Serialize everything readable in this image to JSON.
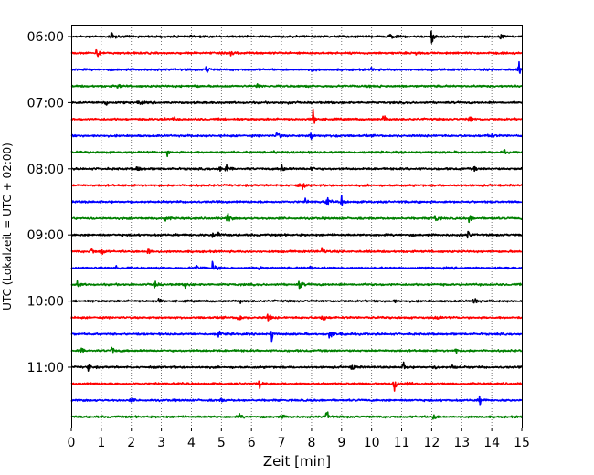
{
  "chart_data": {
    "type": "line",
    "title": "",
    "xlabel": "Zeit  [min]",
    "ylabel": "UTC (Lokalzeit = UTC + 02:00)",
    "xlim": [
      0,
      15
    ],
    "x_ticks": [
      "0",
      "1",
      "2",
      "3",
      "4",
      "5",
      "6",
      "7",
      "8",
      "9",
      "10",
      "11",
      "12",
      "13",
      "14",
      "15"
    ],
    "y_tick_labels": [
      "06:00",
      "07:00",
      "08:00",
      "09:00",
      "10:00",
      "11:00"
    ],
    "grid": "vertical-dotted",
    "trace_start": "06:00",
    "trace_interval_minutes": 15,
    "trace_count": 24,
    "trace_colors": [
      "#000000",
      "#ff0000",
      "#0000ff",
      "#008000"
    ],
    "traces": [
      {
        "start": "06:00",
        "events": [
          [
            1.35,
            1.0
          ],
          [
            10.6,
            0.9
          ],
          [
            12.0,
            1.4
          ],
          [
            14.3,
            1.0
          ]
        ]
      },
      {
        "start": "06:15",
        "events": [
          [
            0.85,
            1.1
          ],
          [
            5.3,
            0.5
          ],
          [
            11.5,
            0.5
          ]
        ]
      },
      {
        "start": "06:30",
        "events": [
          [
            4.5,
            1.0
          ],
          [
            8.0,
            0.5
          ],
          [
            10.0,
            0.5
          ],
          [
            14.9,
            1.3
          ]
        ]
      },
      {
        "start": "06:45",
        "events": [
          [
            1.55,
            0.5
          ],
          [
            4.1,
            0.3
          ],
          [
            6.2,
            0.4
          ],
          [
            10.2,
            0.3
          ]
        ]
      },
      {
        "start": "07:00",
        "events": [
          [
            1.1,
            1.1
          ],
          [
            2.2,
            0.6
          ],
          [
            7.2,
            0.5
          ]
        ]
      },
      {
        "start": "07:15",
        "events": [
          [
            3.0,
            0.6
          ],
          [
            3.4,
            0.4
          ],
          [
            8.05,
            1.5
          ],
          [
            10.4,
            0.9
          ],
          [
            13.25,
            1.0
          ]
        ]
      },
      {
        "start": "07:30",
        "events": [
          [
            6.85,
            1.0
          ],
          [
            7.95,
            1.1
          ],
          [
            8.8,
            0.5
          ],
          [
            13.9,
            1.0
          ]
        ]
      },
      {
        "start": "07:45",
        "events": [
          [
            3.2,
            0.5
          ],
          [
            6.7,
            0.3
          ],
          [
            14.4,
            0.3
          ]
        ]
      },
      {
        "start": "08:00",
        "events": [
          [
            2.2,
            0.9
          ],
          [
            4.95,
            1.0
          ],
          [
            5.15,
            0.8
          ],
          [
            7.0,
            1.1
          ],
          [
            8.0,
            0.6
          ],
          [
            13.4,
            0.5
          ]
        ]
      },
      {
        "start": "08:15",
        "events": [
          [
            7.5,
            0.6
          ],
          [
            7.7,
            0.5
          ]
        ]
      },
      {
        "start": "08:30",
        "events": [
          [
            7.8,
            0.5
          ],
          [
            8.5,
            1.1
          ],
          [
            9.0,
            0.9
          ]
        ]
      },
      {
        "start": "08:45",
        "events": [
          [
            3.1,
            0.8
          ],
          [
            5.2,
            1.2
          ],
          [
            12.1,
            1.1
          ],
          [
            13.25,
            0.9
          ]
        ]
      },
      {
        "start": "09:00",
        "events": [
          [
            4.7,
            0.7
          ],
          [
            4.9,
            0.5
          ],
          [
            13.2,
            0.7
          ]
        ]
      },
      {
        "start": "09:15",
        "events": [
          [
            0.65,
            0.9
          ],
          [
            1.0,
            1.1
          ],
          [
            2.55,
            0.9
          ],
          [
            8.35,
            1.1
          ]
        ]
      },
      {
        "start": "09:30",
        "events": [
          [
            1.5,
            0.5
          ],
          [
            4.15,
            0.7
          ],
          [
            4.7,
            1.3
          ],
          [
            6.25,
            0.6
          ],
          [
            7.95,
            0.5
          ]
        ]
      },
      {
        "start": "09:45",
        "events": [
          [
            0.2,
            0.8
          ],
          [
            2.75,
            1.4
          ],
          [
            3.8,
            0.6
          ],
          [
            7.6,
            1.2
          ]
        ]
      },
      {
        "start": "10:00",
        "events": [
          [
            2.9,
            0.4
          ],
          [
            5.6,
            0.4
          ],
          [
            10.7,
            0.6
          ],
          [
            13.4,
            1.1
          ]
        ]
      },
      {
        "start": "10:15",
        "events": [
          [
            5.55,
            1.2
          ],
          [
            6.55,
            1.0
          ],
          [
            8.35,
            1.1
          ],
          [
            12.15,
            0.6
          ]
        ]
      },
      {
        "start": "10:30",
        "events": [
          [
            4.9,
            1.1
          ],
          [
            6.65,
            1.6
          ],
          [
            8.6,
            1.0
          ],
          [
            9.0,
            0.9
          ]
        ]
      },
      {
        "start": "10:45",
        "events": [
          [
            0.3,
            0.5
          ],
          [
            1.35,
            0.8
          ],
          [
            12.8,
            0.6
          ]
        ]
      },
      {
        "start": "11:00",
        "events": [
          [
            0.55,
            0.9
          ],
          [
            9.35,
            0.8
          ],
          [
            11.05,
            1.0
          ],
          [
            12.1,
            0.7
          ],
          [
            12.7,
            0.6
          ]
        ]
      },
      {
        "start": "11:15",
        "events": [
          [
            6.25,
            1.2
          ],
          [
            10.75,
            1.6
          ],
          [
            11.2,
            0.5
          ]
        ]
      },
      {
        "start": "11:30",
        "events": [
          [
            2.0,
            0.5
          ],
          [
            5.0,
            0.4
          ],
          [
            13.6,
            1.0
          ]
        ]
      },
      {
        "start": "11:45",
        "events": [
          [
            5.6,
            0.5
          ],
          [
            7.0,
            0.4
          ],
          [
            8.5,
            1.1
          ],
          [
            12.05,
            0.7
          ]
        ]
      }
    ]
  }
}
